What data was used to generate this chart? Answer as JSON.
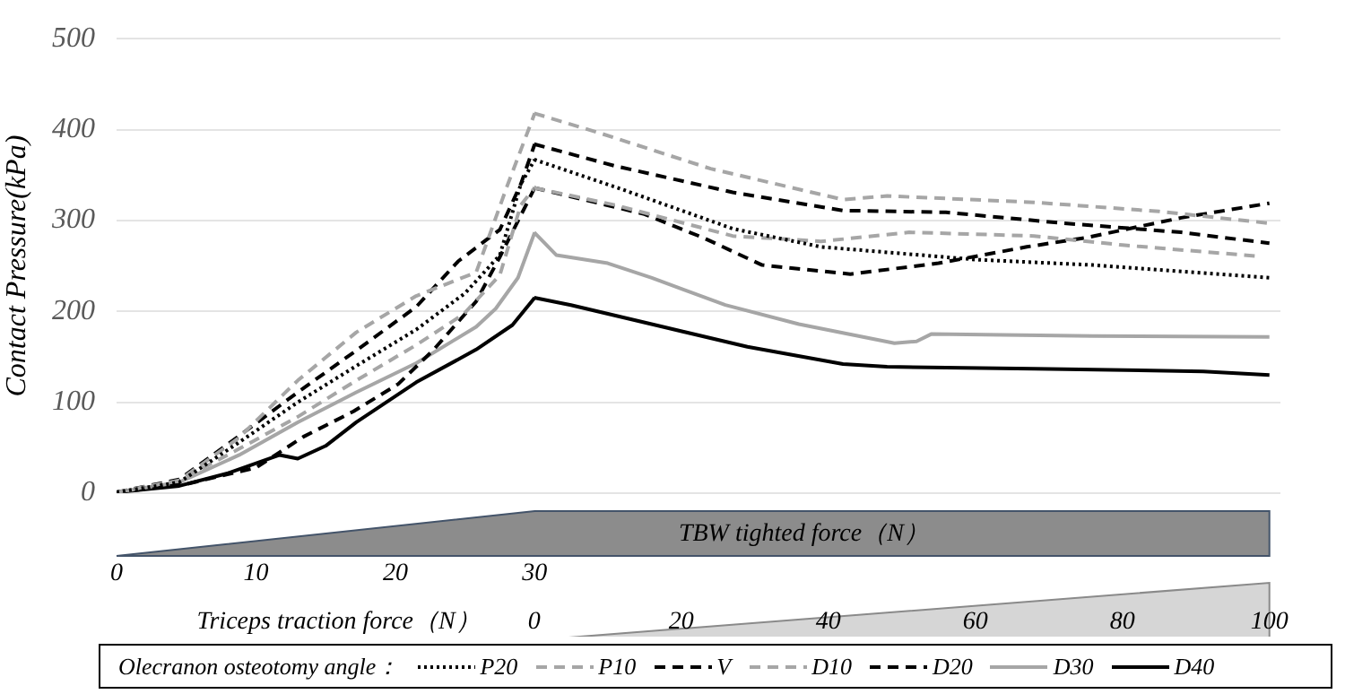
{
  "chart_data": {
    "type": "line",
    "ylabel": "Contact Pressure(kPa)",
    "xlabel": "TBW tighted force（N）",
    "x2label": "Triceps traction force（N）",
    "legend_title": "Olecranon osteotomy angle：",
    "xlim": [
      0,
      83.5
    ],
    "xticks": [
      0,
      10,
      20,
      30
    ],
    "x2lim": [
      -56.8,
      101.5
    ],
    "x2ticks": [
      0,
      20,
      40,
      60,
      80,
      100
    ],
    "ylim": [
      0,
      500
    ],
    "yticks": [
      0,
      100,
      200,
      300,
      400,
      500
    ],
    "grid": "y",
    "legend": "bottom",
    "marker": "none",
    "series": [
      {
        "name": "P20",
        "color": "#000000",
        "line_style": "dotted",
        "axis": "x2",
        "x": [
          0,
          11,
          27,
          39,
          60,
          76,
          100
        ],
        "values": [
          367,
          337,
          291,
          271,
          257,
          251,
          237
        ]
      },
      {
        "name": "P10",
        "color": "#a6a6a6",
        "line_style": "dashed",
        "axis": "x2",
        "x": [
          0,
          9,
          24,
          42,
          48,
          68,
          85,
          100
        ],
        "values": [
          418,
          396,
          357,
          323,
          327,
          320,
          310,
          297
        ]
      },
      {
        "name": "V",
        "color": "#000000",
        "line_style": "dashed",
        "axis": "x2",
        "x": [
          0,
          11,
          27,
          42,
          56,
          72,
          88,
          100
        ],
        "values": [
          384,
          360,
          331,
          311,
          309,
          297,
          287,
          275
        ]
      },
      {
        "name": "D10",
        "color": "#a6a6a6",
        "line_style": "dashed",
        "axis": "x2",
        "x": [
          0,
          11,
          27,
          39,
          51,
          68,
          80,
          98
        ],
        "values": [
          336,
          317,
          283,
          277,
          287,
          283,
          273,
          261
        ]
      },
      {
        "name": "D20",
        "color": "#000000",
        "line_style": "dashed",
        "axis": "x2",
        "x": [
          0,
          15,
          23,
          31,
          43,
          55,
          67,
          75,
          88,
          100
        ],
        "values": [
          336,
          307,
          281,
          251,
          241,
          253,
          271,
          281,
          303,
          319
        ]
      },
      {
        "name": "D30",
        "color": "#a6a6a6",
        "line_style": "solid",
        "axis": "x2",
        "x": [
          0,
          3,
          10,
          16,
          26,
          36,
          49,
          52,
          54,
          76,
          100
        ],
        "values": [
          287,
          262,
          253,
          237,
          207,
          186,
          165,
          167,
          175,
          173,
          172
        ]
      },
      {
        "name": "D40",
        "color": "#000000",
        "line_style": "solid",
        "axis": "x2",
        "x": [
          0,
          5,
          17,
          29,
          42,
          48,
          68,
          91,
          100
        ],
        "values": [
          215,
          207,
          184,
          161,
          142,
          139,
          137,
          134,
          130
        ]
      },
      {
        "color": "#000000",
        "line_style": "dotted",
        "x": [
          0,
          4.5,
          8.7,
          13,
          17.2,
          21.5,
          25,
          27.5,
          29,
          30
        ],
        "values": [
          1,
          12,
          55,
          100,
          140,
          180,
          220,
          262,
          340,
          367
        ]
      },
      {
        "color": "#a6a6a6",
        "line_style": "dashed",
        "x": [
          0,
          4.5,
          8.7,
          13,
          17.2,
          21.5,
          25.8,
          28,
          30
        ],
        "values": [
          1,
          14,
          60,
          124,
          177,
          217,
          243,
          337,
          418
        ]
      },
      {
        "color": "#000000",
        "line_style": "dashed",
        "x": [
          0,
          4.5,
          8.7,
          13,
          17.2,
          21.5,
          24.5,
          27.5,
          29,
          30
        ],
        "values": [
          1,
          15,
          62,
          111,
          157,
          205,
          255,
          290,
          340,
          384
        ]
      },
      {
        "color": "#a6a6a6",
        "line_style": "dashed",
        "x": [
          0,
          4.5,
          8.7,
          13,
          17.2,
          21.5,
          24.9,
          27.5,
          29,
          30
        ],
        "values": [
          1,
          14,
          48,
          84,
          124,
          163,
          197,
          240,
          317,
          336
        ]
      },
      {
        "color": "#000000",
        "line_style": "dashed",
        "x": [
          0,
          5,
          10,
          13.4,
          17,
          20.2,
          22.7,
          25.8,
          27.5,
          30
        ],
        "values": [
          1,
          10,
          28,
          62,
          90,
          120,
          157,
          211,
          260,
          336
        ]
      },
      {
        "color": "#a6a6a6",
        "line_style": "solid",
        "x": [
          0,
          4.5,
          8.8,
          13,
          17.2,
          21.5,
          25.8,
          27.2,
          28.8,
          30
        ],
        "values": [
          1,
          12,
          42,
          78,
          111,
          143,
          183,
          203,
          237,
          287
        ]
      },
      {
        "color": "#000000",
        "line_style": "solid",
        "x": [
          0,
          4.5,
          8,
          11.7,
          13,
          15,
          17.2,
          21.5,
          25.8,
          28.4,
          30
        ],
        "values": [
          1,
          8,
          22,
          42,
          38,
          52,
          78,
          122,
          158,
          185,
          215
        ]
      }
    ]
  }
}
